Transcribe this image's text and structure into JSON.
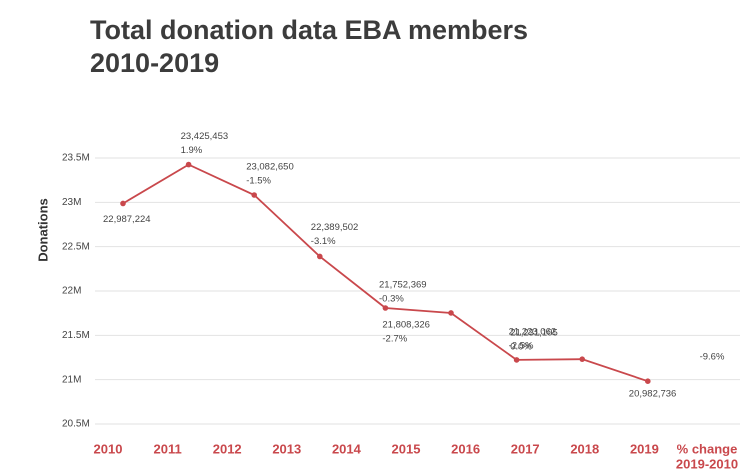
{
  "chart_data": {
    "type": "line",
    "title": "Total donation data EBA members",
    "subtitle": "2010-2019",
    "y_label": "Donations",
    "categories": [
      "2010",
      "2011",
      "2012",
      "2013",
      "2014",
      "2015",
      "2016",
      "2017",
      "2018",
      "2019"
    ],
    "extra_label": [
      "% change",
      "2019-2010"
    ],
    "total_change": "-9.6%",
    "series": [
      {
        "name": "Donations",
        "color": "#c9484c",
        "values": [
          22987224,
          23425453,
          23082650,
          22389502,
          21808326,
          21752369,
          21223062,
          21231105,
          20982736,
          null
        ],
        "value_labels": [
          "22,987,224",
          "23,425,453",
          "23,082,650",
          "22,389,502",
          "21,808,326",
          "21,752,369",
          "21,223,062",
          "21,231,105",
          "20,982,736",
          null
        ],
        "change_labels": [
          null,
          "1.9%",
          "-1.5%",
          "-3.1%",
          "-2.7%",
          "-0.3%",
          "-2.5%",
          "0.0%",
          null,
          null
        ]
      }
    ],
    "ylim": [
      20500000,
      23500000
    ],
    "yticks": [
      {
        "value": 20500000,
        "label": "20.5M"
      },
      {
        "value": 21000000,
        "label": "21M"
      },
      {
        "value": 21500000,
        "label": "21.5M"
      },
      {
        "value": 22000000,
        "label": "22M"
      },
      {
        "value": 22500000,
        "label": "22.5M"
      },
      {
        "value": 23000000,
        "label": "23M"
      },
      {
        "value": 23500000,
        "label": "23.5M"
      }
    ],
    "grid": true
  }
}
